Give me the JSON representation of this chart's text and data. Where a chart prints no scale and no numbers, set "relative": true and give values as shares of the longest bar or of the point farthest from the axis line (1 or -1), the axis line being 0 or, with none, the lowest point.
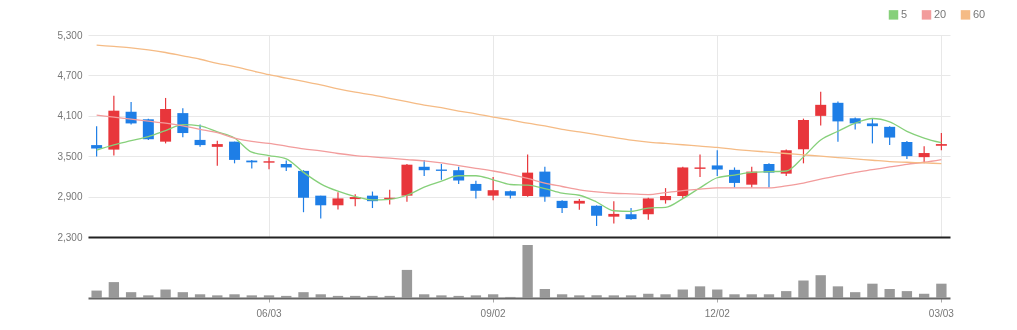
{
  "chart_data": [
    {
      "type": "candlestick",
      "categories": [
        null,
        null,
        null,
        null,
        null,
        null,
        null,
        null,
        null,
        null,
        null,
        null,
        null,
        null,
        null,
        null,
        null,
        null,
        null,
        null,
        null,
        null,
        null,
        null,
        null,
        null,
        null,
        null,
        null,
        null,
        null,
        null,
        null,
        null,
        null,
        null,
        null,
        null,
        null,
        null,
        null,
        null,
        null,
        null,
        null,
        null,
        null,
        null,
        null,
        null
      ],
      "ohlc": [
        [
          3665,
          3946,
          3496,
          3614
        ],
        [
          3598,
          4396,
          3512,
          4176
        ],
        [
          4160,
          4304,
          3971,
          3987
        ],
        [
          4048,
          4058,
          3741,
          3752
        ],
        [
          3716,
          4365,
          3690,
          4201
        ],
        [
          4140,
          4212,
          3782,
          3844
        ],
        [
          3742,
          3971,
          3639,
          3665
        ],
        [
          3639,
          3731,
          3358,
          3680
        ],
        [
          3716,
          3716,
          3394,
          3445
        ],
        [
          3435,
          3445,
          3317,
          3409
        ],
        [
          3404,
          3486,
          3307,
          3425
        ],
        [
          3384,
          3435,
          3282,
          3333
        ],
        [
          3282,
          3292,
          2668,
          2883
        ],
        [
          2914,
          2914,
          2576,
          2771
        ],
        [
          2771,
          2965,
          2709,
          2873
        ],
        [
          2863,
          2934,
          2755,
          2893
        ],
        [
          2914,
          2975,
          2730,
          2832
        ],
        [
          2863,
          3001,
          2781,
          2883
        ],
        [
          2914,
          3384,
          2822,
          3374
        ],
        [
          3343,
          3445,
          3205,
          3292
        ],
        [
          3302,
          3384,
          3149,
          3282
        ],
        [
          3292,
          3343,
          3087,
          3139
        ],
        [
          3088,
          3134,
          2873,
          2986
        ],
        [
          2914,
          3190,
          2847,
          2995
        ],
        [
          2980,
          2990,
          2873,
          2914
        ],
        [
          2909,
          3527,
          2898,
          3256
        ],
        [
          3271,
          3343,
          2822,
          2898
        ],
        [
          2837,
          2847,
          2658,
          2730
        ],
        [
          2796,
          2863,
          2704,
          2837
        ],
        [
          2765,
          2770,
          2464,
          2617
        ],
        [
          2602,
          2832,
          2500,
          2643
        ],
        [
          2638,
          2730,
          2556,
          2566
        ],
        [
          2638,
          2883,
          2556,
          2873
        ],
        [
          2847,
          3026,
          2796,
          2909
        ],
        [
          2909,
          3343,
          2873,
          3333
        ],
        [
          3312,
          3527,
          3190,
          3333
        ],
        [
          3363,
          3588,
          3205,
          3302
        ],
        [
          3297,
          3333,
          3036,
          3103
        ],
        [
          3077,
          3343,
          3036,
          3271
        ],
        [
          3384,
          3394,
          3036,
          3256
        ],
        [
          3241,
          3598,
          3205,
          3588
        ],
        [
          3603,
          4058,
          3394,
          4038
        ],
        [
          4099,
          4457,
          3956,
          4263
        ],
        [
          4293,
          4314,
          3716,
          4017
        ],
        [
          4063,
          4074,
          3895,
          3987
        ],
        [
          3987,
          4058,
          3690,
          3946
        ],
        [
          3936,
          3946,
          3665,
          3777
        ],
        [
          3711,
          3726,
          3460,
          3501
        ],
        [
          3486,
          3649,
          3394,
          3547
        ],
        [
          3655,
          3844,
          3588,
          3680
        ]
      ],
      "colors": [
        "#1e7ee6",
        "#e8363b",
        "#1e7ee6",
        "#1e7ee6",
        "#e8363b",
        "#1e7ee6",
        "#1e7ee6",
        "#e8363b",
        "#1e7ee6",
        "#1e7ee6",
        "#e8363b",
        "#1e7ee6",
        "#1e7ee6",
        "#1e7ee6",
        "#e8363b",
        "#e8363b",
        "#1e7ee6",
        "#e8363b",
        "#e8363b",
        "#1e7ee6",
        "#1e7ee6",
        "#1e7ee6",
        "#1e7ee6",
        "#e8363b",
        "#1e7ee6",
        "#e8363b",
        "#1e7ee6",
        "#1e7ee6",
        "#e8363b",
        "#1e7ee6",
        "#e8363b",
        "#1e7ee6",
        "#e8363b",
        "#e8363b",
        "#e8363b",
        "#e8363b",
        "#1e7ee6",
        "#1e7ee6",
        "#e8363b",
        "#1e7ee6",
        "#e8363b",
        "#e8363b",
        "#e8363b",
        "#1e7ee6",
        "#1e7ee6",
        "#1e7ee6",
        "#1e7ee6",
        "#1e7ee6",
        "#e8363b",
        "#e8363b"
      ],
      "series": [
        {
          "name": "5",
          "type": "line",
          "color": "#86d07a",
          "values": [
            3590,
            3670,
            3730,
            3790,
            3880,
            3970,
            3950,
            3860,
            3770,
            3560,
            3510,
            3460,
            3260,
            3090,
            2980,
            2900,
            2850,
            2860,
            2920,
            3040,
            3130,
            3210,
            3210,
            3150,
            3080,
            3070,
            3020,
            2950,
            2920,
            2820,
            2690,
            2680,
            2730,
            2740,
            2870,
            3030,
            3180,
            3220,
            3260,
            3270,
            3280,
            3490,
            3740,
            3870,
            3990,
            4060,
            4010,
            3870,
            3770,
            3700
          ]
        },
        {
          "name": "20",
          "type": "line",
          "color": "#f29c9c",
          "values": [
            4110,
            4080,
            4050,
            4020,
            3990,
            3950,
            3900,
            3850,
            3770,
            3720,
            3690,
            3650,
            3610,
            3580,
            3540,
            3510,
            3490,
            3470,
            3450,
            3430,
            3400,
            3360,
            3320,
            3280,
            3230,
            3170,
            3100,
            3050,
            3000,
            2970,
            2950,
            2940,
            2930,
            2960,
            2990,
            3010,
            3030,
            3030,
            3030,
            3030,
            3060,
            3100,
            3160,
            3210,
            3260,
            3300,
            3340,
            3380,
            3410,
            3450
          ]
        },
        {
          "name": "60",
          "type": "line",
          "color": "#f5bb85",
          "values": [
            5150,
            5130,
            5110,
            5080,
            5040,
            4990,
            4940,
            4880,
            4830,
            4770,
            4710,
            4660,
            4610,
            4560,
            4500,
            4450,
            4410,
            4360,
            4310,
            4260,
            4220,
            4170,
            4130,
            4080,
            4040,
            3990,
            3950,
            3900,
            3860,
            3820,
            3780,
            3740,
            3710,
            3690,
            3670,
            3650,
            3630,
            3600,
            3580,
            3560,
            3540,
            3520,
            3500,
            3480,
            3460,
            3440,
            3420,
            3410,
            3400,
            3390
          ]
        }
      ],
      "ylim": [
        2300,
        5300
      ],
      "yticks": [
        {
          "value": 2300,
          "label": "2,300"
        },
        {
          "value": 2900,
          "label": "2,900"
        },
        {
          "value": 3500,
          "label": "3,500"
        },
        {
          "value": 4100,
          "label": "4,100"
        },
        {
          "value": 4700,
          "label": "4,700"
        },
        {
          "value": 5300,
          "label": "5,300"
        }
      ],
      "grid": true,
      "legend": "top right",
      "tick_labels": "y"
    },
    {
      "type": "bar",
      "relative": true,
      "color": "#999999",
      "categories": [
        null,
        null,
        null,
        null,
        null,
        null,
        null,
        null,
        null,
        null,
        "06/03",
        null,
        null,
        null,
        null,
        null,
        null,
        null,
        null,
        null,
        null,
        null,
        null,
        "09/02",
        null,
        null,
        null,
        null,
        null,
        null,
        null,
        null,
        null,
        null,
        null,
        null,
        "12/02",
        null,
        null,
        null,
        null,
        null,
        null,
        null,
        null,
        null,
        null,
        null,
        null,
        "03/03"
      ],
      "values": [
        0.14,
        0.3,
        0.11,
        0.05,
        0.16,
        0.11,
        0.07,
        0.05,
        0.07,
        0.05,
        0.05,
        0.04,
        0.11,
        0.07,
        0.04,
        0.04,
        0.04,
        0.04,
        0.53,
        0.07,
        0.05,
        0.04,
        0.05,
        0.07,
        0.02,
        1,
        0.17,
        0.07,
        0.05,
        0.05,
        0.05,
        0.05,
        0.08,
        0.07,
        0.16,
        0.22,
        0.16,
        0.07,
        0.07,
        0.07,
        0.13,
        0.33,
        0.43,
        0.22,
        0.11,
        0.27,
        0.17,
        0.13,
        0.08,
        0.27
      ]
    }
  ]
}
